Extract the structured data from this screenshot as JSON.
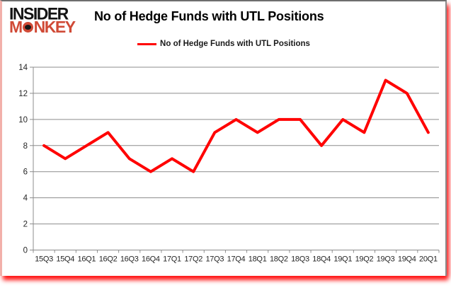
{
  "logo": {
    "line1": "INSIDER",
    "line2_prefix": "M",
    "line2_suffix": "NKEY",
    "monkey_o_icon": "monkey-face"
  },
  "chart_data": {
    "type": "line",
    "title": "No of Hedge Funds with UTL Positions",
    "series_name": "No of Hedge Funds with UTL Positions",
    "categories": [
      "15Q3",
      "15Q4",
      "16Q1",
      "16Q2",
      "16Q3",
      "16Q4",
      "17Q1",
      "17Q2",
      "17Q3",
      "17Q4",
      "18Q1",
      "18Q2",
      "18Q3",
      "18Q4",
      "19Q1",
      "19Q2",
      "19Q3",
      "19Q4",
      "20Q1"
    ],
    "values": [
      8,
      7,
      8,
      9,
      7,
      6,
      7,
      6,
      9,
      10,
      9,
      10,
      10,
      8,
      10,
      9,
      13,
      12,
      9
    ],
    "ylim": [
      0,
      14
    ],
    "yticks": [
      0,
      2,
      4,
      6,
      8,
      10,
      12,
      14
    ],
    "grid": true,
    "legend_position": "top-center",
    "line_color": "#ff0000",
    "grid_color": "#8c8c8c",
    "tick_label_color": "#262626"
  },
  "colors": {
    "accent_red": "#ff0000",
    "logo_red": "#d04a36",
    "shadow_red": "#ff0000",
    "border_gray": "#6e6e6e"
  }
}
